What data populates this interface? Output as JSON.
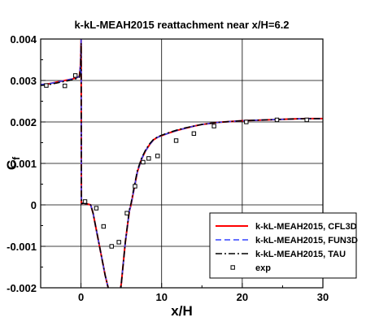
{
  "chart_data": {
    "type": "line",
    "title": "k-kL-MEAH2015 reattachment near x/H=6.2",
    "xlabel": "x/H",
    "ylabel": "C",
    "ylabel_sub": "f",
    "xlim": [
      -5,
      30
    ],
    "ylim": [
      -0.002,
      0.004
    ],
    "xticks": [
      0,
      10,
      20,
      30
    ],
    "xtick_labels": [
      "0",
      "10",
      "20",
      "30"
    ],
    "yticks": [
      -0.002,
      -0.001,
      0,
      0.001,
      0.002,
      0.003,
      0.004
    ],
    "ytick_labels": [
      "-0.002",
      "-0.001",
      "0",
      "0.001",
      "0.002",
      "0.003",
      "0.004"
    ],
    "grid": true,
    "legend_position": "bottom-right",
    "series": [
      {
        "name": "k-kL-MEAH2015, CFL3D",
        "color": "#ff0000",
        "style": "solid",
        "x": [
          -5,
          -4,
          -3,
          -2,
          -1,
          -0.5,
          -0.2,
          -0.05,
          0.02,
          0.05,
          0.3,
          0.8,
          1.2,
          1.5,
          1.8,
          2.2,
          2.6,
          3.0,
          3.5,
          4.0,
          4.5,
          5.0,
          5.5,
          6.0,
          6.2,
          6.6,
          7.0,
          7.5,
          8.0,
          8.5,
          9.0,
          9.5,
          10,
          11,
          12,
          13,
          14,
          15,
          17,
          20,
          23,
          26,
          28,
          30
        ],
        "y": [
          0.0029,
          0.00292,
          0.00296,
          0.003,
          0.00304,
          0.00307,
          0.0031,
          0.0034,
          0.004,
          3e-05,
          4e-05,
          2e-05,
          0.0,
          -0.0002,
          -0.0005,
          -0.0009,
          -0.0013,
          -0.0017,
          -0.0021,
          -0.0024,
          -0.0025,
          -0.0019,
          -0.0009,
          -0.00015,
          0.0,
          0.0004,
          0.0008,
          0.0011,
          0.0013,
          0.00145,
          0.00157,
          0.00163,
          0.00167,
          0.00174,
          0.0018,
          0.00185,
          0.0019,
          0.00194,
          0.00199,
          0.00203,
          0.00205,
          0.00207,
          0.00208,
          0.00208
        ]
      },
      {
        "name": "k-kL-MEAH2015, FUN3D",
        "color": "#3344ff",
        "style": "dashed",
        "x": [
          -5,
          -4,
          -3,
          -2,
          -1,
          -0.5,
          -0.2,
          -0.05,
          0.02,
          0.05,
          0.3,
          0.8,
          1.2,
          1.5,
          1.8,
          2.2,
          2.6,
          3.0,
          3.5,
          4.0,
          4.5,
          5.0,
          5.5,
          6.0,
          6.2,
          6.6,
          7.0,
          7.5,
          8.0,
          8.5,
          9.0,
          9.5,
          10,
          11,
          12,
          13,
          14,
          15,
          17,
          20,
          23,
          26,
          28,
          30
        ],
        "y": [
          0.0029,
          0.00292,
          0.00296,
          0.003,
          0.00304,
          0.00307,
          0.0031,
          0.0034,
          0.004,
          3e-05,
          4e-05,
          2e-05,
          0.0,
          -0.0002,
          -0.0005,
          -0.0009,
          -0.0013,
          -0.0017,
          -0.0021,
          -0.0024,
          -0.0025,
          -0.0019,
          -0.0009,
          -0.00015,
          0.0,
          0.0004,
          0.0008,
          0.0011,
          0.0013,
          0.00145,
          0.00157,
          0.00163,
          0.00167,
          0.00174,
          0.0018,
          0.00185,
          0.0019,
          0.00194,
          0.00199,
          0.00203,
          0.00205,
          0.00207,
          0.00208,
          0.00208
        ]
      },
      {
        "name": "k-kL-MEAH2015, TAU",
        "color": "#000000",
        "style": "dashdot",
        "x": [
          -5,
          -4,
          -3,
          -2,
          -1,
          -0.5,
          -0.2,
          -0.05,
          0.02,
          0.05,
          0.3,
          0.8,
          1.2,
          1.5,
          1.8,
          2.2,
          2.6,
          3.0,
          3.5,
          4.0,
          4.5,
          5.0,
          5.5,
          6.0,
          6.2,
          6.6,
          7.0,
          7.5,
          8.0,
          8.5,
          9.0,
          9.5,
          10,
          11,
          12,
          13,
          14,
          15,
          17,
          20,
          23,
          26,
          28,
          30
        ],
        "y": [
          0.00288,
          0.0029,
          0.00294,
          0.00298,
          0.00302,
          0.00305,
          0.00308,
          0.0033,
          0.0039,
          3e-05,
          4e-05,
          2e-05,
          0.0,
          -0.0002,
          -0.0005,
          -0.0009,
          -0.0013,
          -0.0017,
          -0.0021,
          -0.0024,
          -0.0025,
          -0.0019,
          -0.0009,
          -0.00012,
          3e-05,
          0.00045,
          0.00083,
          0.00112,
          0.00132,
          0.00147,
          0.00158,
          0.00164,
          0.00168,
          0.00175,
          0.00181,
          0.00186,
          0.0019,
          0.00194,
          0.00199,
          0.00203,
          0.00205,
          0.00207,
          0.00208,
          0.00208
        ]
      },
      {
        "name": "exp",
        "color": "#000000",
        "style": "markers",
        "x": [
          -4.3,
          -2.0,
          -0.7,
          0.5,
          1.9,
          2.8,
          3.8,
          4.7,
          5.7,
          6.7,
          7.7,
          8.4,
          9.5,
          11.8,
          14.0,
          16.5,
          20.5,
          24.3,
          28.0
        ],
        "y": [
          0.00288,
          0.00287,
          0.00312,
          8e-05,
          -8e-05,
          -0.00052,
          -0.001,
          -0.0009,
          -0.0002,
          0.00045,
          0.00103,
          0.00112,
          0.00118,
          0.00155,
          0.00172,
          0.0019,
          0.002,
          0.00205,
          0.00205
        ]
      }
    ]
  }
}
